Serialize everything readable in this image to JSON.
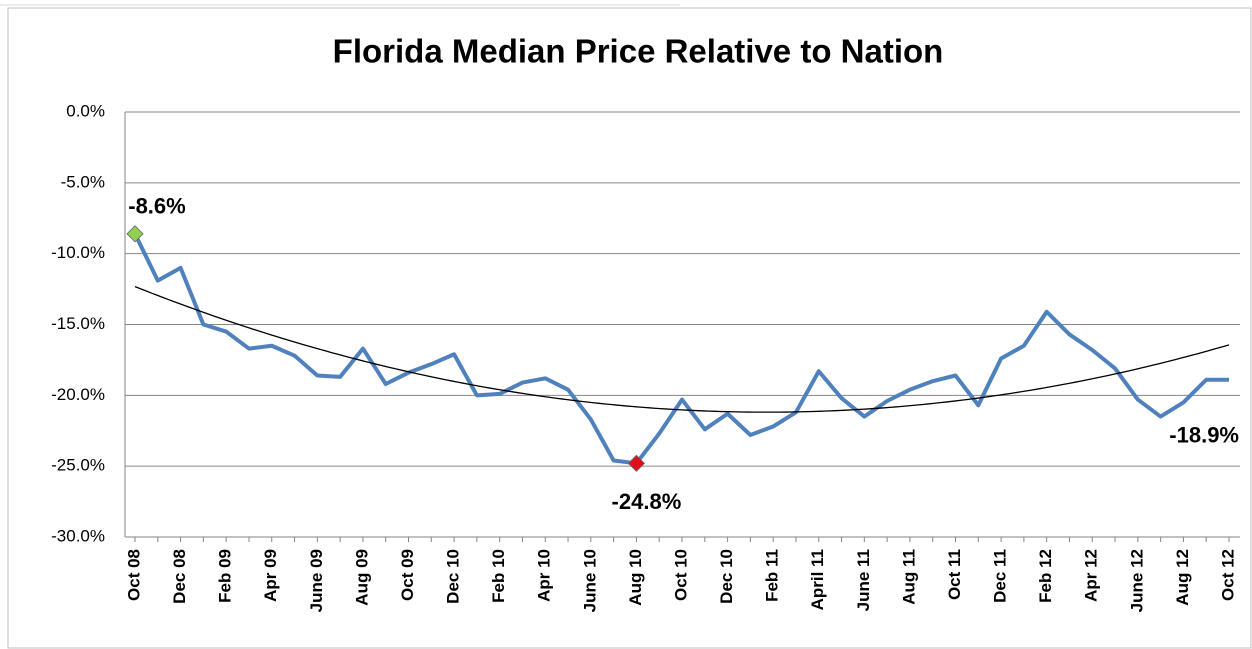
{
  "chart_data": {
    "type": "line",
    "title": "Florida Median Price Relative to Nation",
    "categories": [
      "Oct 08",
      null,
      "Dec 08",
      null,
      "Feb 09",
      null,
      "Apr 09",
      null,
      "June 09",
      null,
      "Aug 09",
      null,
      "Oct 09",
      null,
      "Dec 10",
      null,
      "Feb 10",
      null,
      "Apr 10",
      null,
      "June 10",
      null,
      "Aug 10",
      null,
      "Oct 10",
      null,
      "Dec 10",
      null,
      "Feb 11",
      null,
      "April 11",
      null,
      "June 11",
      null,
      "Aug 11",
      null,
      "Oct 11",
      null,
      "Dec 11",
      null,
      "Feb 12",
      null,
      "Apr 12",
      null,
      "June 12",
      null,
      "Aug 12",
      null,
      "Oct 12"
    ],
    "series": [
      {
        "color": "#4f81bd",
        "values": [
          -8.6,
          -11.9,
          -11.0,
          -15.0,
          -15.5,
          -16.7,
          -16.5,
          -17.2,
          -18.6,
          -18.7,
          -16.7,
          -19.2,
          -18.4,
          -17.8,
          -17.1,
          -20.0,
          -19.9,
          -19.1,
          -18.8,
          -19.6,
          -21.7,
          -24.6,
          -24.8,
          -22.7,
          -20.3,
          -22.4,
          -21.3,
          -22.8,
          -22.2,
          -21.2,
          -18.3,
          -20.2,
          -21.5,
          -20.4,
          -19.6,
          -19.0,
          -18.6,
          -20.7,
          -17.4,
          -16.5,
          -14.1,
          -15.7,
          -16.8,
          -18.1,
          -20.3,
          -21.5,
          -20.5,
          -18.9,
          -18.9
        ],
        "value_labels": [
          "-8.6%",
          null,
          null,
          null,
          null,
          null,
          null,
          null,
          null,
          null,
          null,
          null,
          null,
          null,
          null,
          null,
          null,
          null,
          null,
          null,
          null,
          null,
          "-24.8%",
          null,
          null,
          null,
          null,
          null,
          null,
          null,
          null,
          null,
          null,
          null,
          null,
          null,
          null,
          null,
          null,
          null,
          null,
          null,
          null,
          null,
          null,
          null,
          null,
          null,
          "-18.9%"
        ],
        "markers": [
          {
            "index": 0,
            "color": "#92d050"
          },
          {
            "index": 22,
            "color": "#e0101a"
          }
        ]
      }
    ],
    "trendline": {
      "order": 2,
      "color": "#000000"
    },
    "ylim": [
      -30,
      0
    ],
    "yticks": [
      {
        "value": 0,
        "label": "0.0%"
      },
      {
        "value": -5,
        "label": "-5.0%"
      },
      {
        "value": -10,
        "label": "-10.0%"
      },
      {
        "value": -15,
        "label": "-15.0%"
      },
      {
        "value": -20,
        "label": "-20.0%"
      },
      {
        "value": -25,
        "label": "-25.0%"
      },
      {
        "value": -30,
        "label": "-30.0%"
      }
    ],
    "grid": true
  }
}
